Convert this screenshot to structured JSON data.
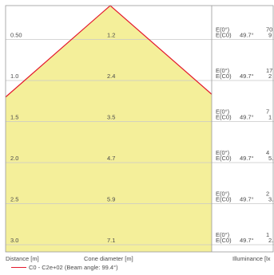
{
  "chart_data": {
    "type": "area",
    "title": "",
    "beam_angle_deg": 99.4,
    "rows": [
      {
        "distance": "0.50",
        "diameter": "1.2",
        "e_label": "E(0°)",
        "ec0_label": "E(C0)",
        "angle": "49.7°",
        "e_val": "70",
        "ec0_val": "9"
      },
      {
        "distance": "1.0",
        "diameter": "2.4",
        "e_label": "E(0°)",
        "ec0_label": "E(C0)",
        "angle": "49.7°",
        "e_val": "17",
        "ec0_val": "2"
      },
      {
        "distance": "1.5",
        "diameter": "3.5",
        "e_label": "E(0°)",
        "ec0_label": "E(C0)",
        "angle": "49.7°",
        "e_val": "7",
        "ec0_val": "1"
      },
      {
        "distance": "2.0",
        "diameter": "4.7",
        "e_label": "E(0°)",
        "ec0_label": "E(C0)",
        "angle": "49.7°",
        "e_val": "4",
        "ec0_val": "5."
      },
      {
        "distance": "2.5",
        "diameter": "5.9",
        "e_label": "E(0°)",
        "ec0_label": "E(C0)",
        "angle": "49.7°",
        "e_val": "2",
        "ec0_val": "3."
      },
      {
        "distance": "3.0",
        "diameter": "7.1",
        "e_label": "E(0°)",
        "ec0_label": "E(C0)",
        "angle": "49.7°",
        "e_val": "1",
        "ec0_val": "2."
      }
    ],
    "xlabel": "Cone diameter [m]",
    "ylabel": "Distance [m]",
    "illuminance_label": "Illuminance [lx",
    "legend": {
      "label": "C0 - C2e+02 (Beam angle: 99.4°)",
      "color": "#e3182d"
    },
    "fill_color": "#f4ef9a",
    "line_color": "#e3182d",
    "grid_color": "#c8c8c8"
  }
}
